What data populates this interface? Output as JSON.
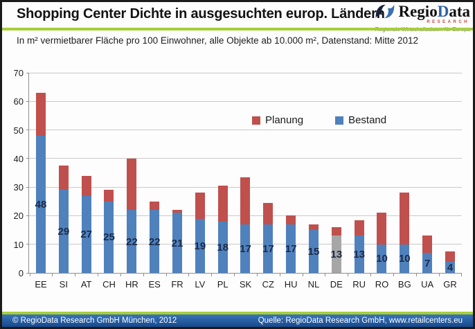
{
  "header": {
    "title": "Shopping Center Dichte in ausgesuchten europ. Ländern",
    "logo": {
      "brand_part1": "Regio",
      "brand_part2": "D",
      "brand_part3": "ata",
      "research": "RESEARCH",
      "tagline": "Regionale Wirtschaftsdaten für Europa"
    }
  },
  "subtitle": "In m² vermietbarer Fläche pro 100 Einwohner, alle Objekte ab 10.000 m², Datenstand: Mitte 2012",
  "chart_data": {
    "type": "bar",
    "stacked": true,
    "title": "Shopping Center Dichte in ausgesuchten europ. Ländern",
    "subtitle": "In m² vermietbarer Fläche pro 100 Einwohner, alle Objekte ab 10.000 m², Datenstand: Mitte 2012",
    "categories": [
      "EE",
      "SI",
      "AT",
      "CH",
      "HR",
      "ES",
      "FR",
      "LV",
      "PL",
      "SK",
      "CZ",
      "HU",
      "NL",
      "DE",
      "RU",
      "RO",
      "BG",
      "UA",
      "GR"
    ],
    "series": [
      {
        "name": "Bestand",
        "color": "#4f81bd",
        "values": [
          48,
          29,
          27,
          25,
          22,
          22,
          21,
          19,
          18,
          17,
          17,
          17,
          15,
          13,
          13,
          10,
          10,
          7,
          4
        ]
      },
      {
        "name": "Planung",
        "color": "#c0504d",
        "values": [
          15,
          8.5,
          7,
          4,
          18,
          3,
          1,
          9,
          12.5,
          16.5,
          7.5,
          3,
          2,
          3,
          5.5,
          11,
          18,
          6,
          3.5
        ]
      }
    ],
    "bar_labels": [
      "48",
      "29",
      "27",
      "25",
      "22",
      "22",
      "21",
      "19",
      "18",
      "17",
      "17",
      "17",
      "15",
      "13",
      "13",
      "10",
      "10",
      "7",
      "4"
    ],
    "highlight": {
      "category": "DE",
      "series": "Bestand",
      "color": "#a6a6a6"
    },
    "ylim": [
      0,
      70
    ],
    "ytick_step": 10,
    "yticks": [
      0,
      10,
      20,
      30,
      40,
      50,
      60,
      70
    ],
    "grid": true,
    "legend_position": "upper center",
    "legend": [
      {
        "label": "Planung",
        "color": "#c0504d"
      },
      {
        "label": "Bestand",
        "color": "#4f81bd"
      }
    ]
  },
  "footer": {
    "left": "© RegioData Research GmbH München, 2012",
    "right": "Quelle: RegioData Research GmbH, www.retailcenters.eu"
  },
  "colors": {
    "planung-red": "#c0504d",
    "bestand-blue": "#4f81bd",
    "highlight-gray": "#a6a6a6",
    "accent-green": "#a6ce39",
    "footer-top": "#3a74b8",
    "footer-bottom": "#16498d",
    "logo-blue": "#2f62a7",
    "logo-red": "#cc4438",
    "grid": "#c9c9c9",
    "axis": "#8f8f8f",
    "value-label": "#1b2b4a",
    "tick-label": "#1c1c1c"
  }
}
